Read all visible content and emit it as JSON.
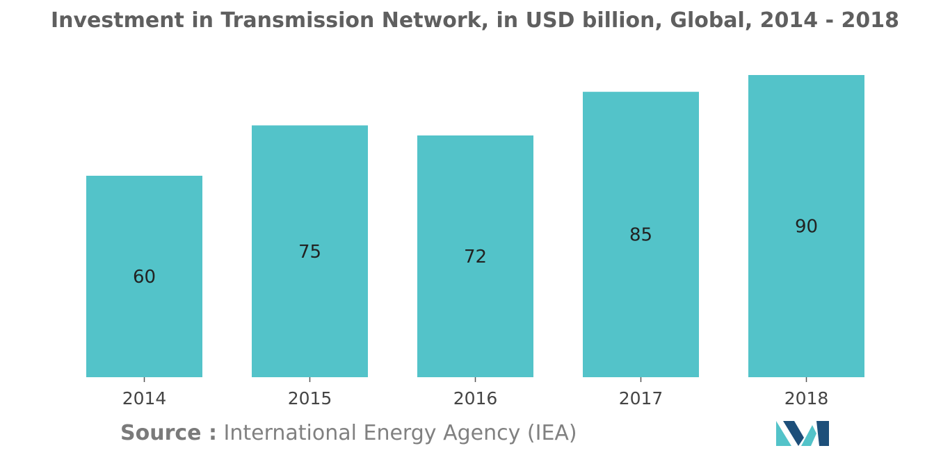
{
  "chart_data": {
    "type": "bar",
    "title": "Investment in Transmission Network, in USD billion, Global, 2014 - 2018",
    "categories": [
      "2014",
      "2015",
      "2016",
      "2017",
      "2018"
    ],
    "values": [
      60,
      75,
      72,
      85,
      90
    ],
    "xlabel": "",
    "ylabel": "",
    "ylim": [
      0,
      90
    ],
    "grid": false,
    "data_labels": true,
    "bar_color": "#53c3c9"
  },
  "source": {
    "label": "Source :",
    "text": "International Energy Agency (IEA)"
  },
  "logo": {
    "icon": "mordor-intelligence-logo-icon",
    "colors": [
      "#1d4f7a",
      "#53c3c9"
    ]
  }
}
